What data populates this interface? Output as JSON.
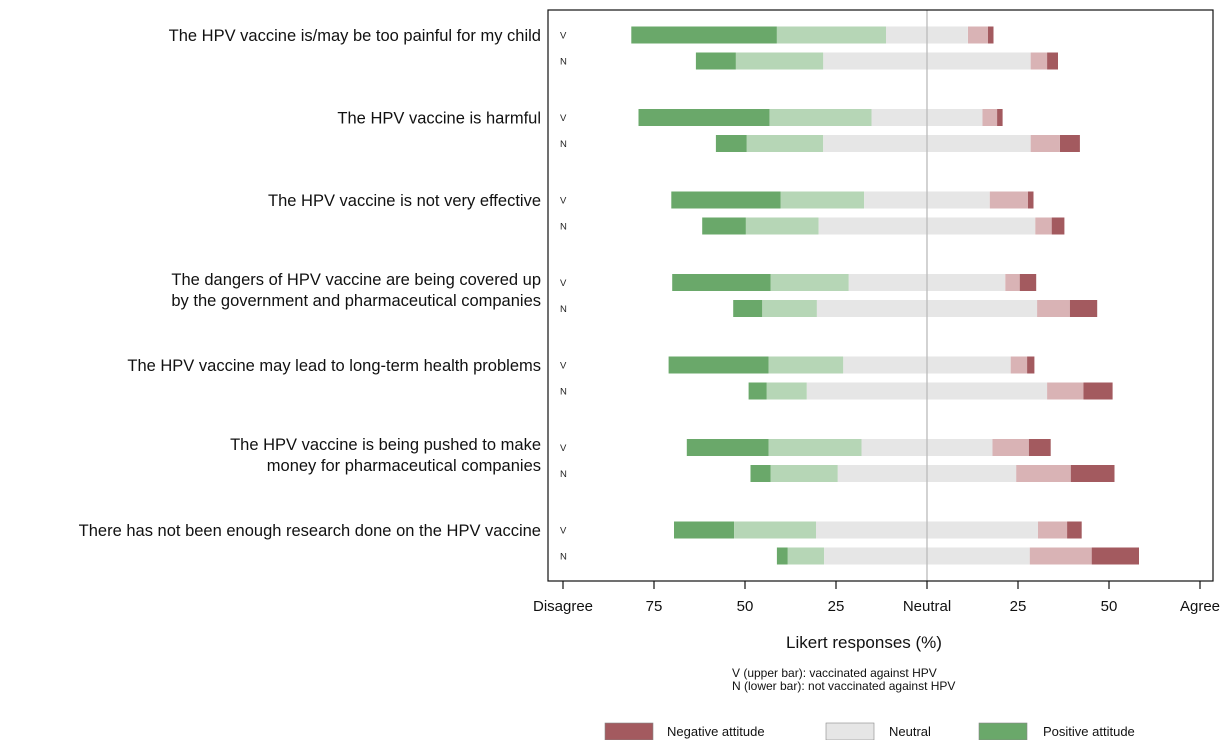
{
  "chart_data": {
    "type": "bar",
    "subtype": "diverging-stacked-horizontal",
    "x_axis": {
      "title": "Likert responses (%)",
      "range": [
        -100,
        100
      ],
      "ticks": [
        {
          "value": -100,
          "label": "Disagree"
        },
        {
          "value": -75,
          "label": "75"
        },
        {
          "value": -50,
          "label": "50"
        },
        {
          "value": -25,
          "label": "25"
        },
        {
          "value": 0,
          "label": "Neutral"
        },
        {
          "value": 25,
          "label": "25"
        },
        {
          "value": 50,
          "label": "50"
        },
        {
          "value": 75,
          "label": "Agree"
        }
      ]
    },
    "notes": [
      "V (upper bar): vaccinated against HPV",
      "N (lower bar): not vaccinated against HPV"
    ],
    "legend": {
      "placement": "bottom",
      "items": [
        {
          "label": "Negative attitude",
          "color": "#a35a5f"
        },
        {
          "label": "Neutral",
          "color": "#e6e6e6"
        },
        {
          "label": "Positive attitude",
          "color": "#6aa86a"
        }
      ]
    },
    "colors": {
      "strongly_disagree": "#6aa86a",
      "disagree": "#b6d6b6",
      "neutral": "#e6e6e6",
      "agree": "#d9b3b5",
      "strongly_agree": "#a35a5f",
      "neutral_line": "#bbbbbb"
    },
    "segment_order": [
      "strongly_disagree",
      "disagree",
      "neutral",
      "agree",
      "strongly_agree"
    ],
    "items": [
      {
        "label_lines": [
          "The HPV vaccine is/may be too painful for my child"
        ],
        "groups": [
          {
            "tag": "V",
            "segments": [
              40,
              30,
              22.5,
              5.5,
              1.5
            ]
          },
          {
            "tag": "N",
            "segments": [
              11,
              24,
              57,
              4.5,
              3
            ]
          }
        ]
      },
      {
        "label_lines": [
          "The HPV vaccine is harmful"
        ],
        "groups": [
          {
            "tag": "V",
            "segments": [
              36,
              28,
              30.5,
              4,
              1.5
            ]
          },
          {
            "tag": "N",
            "segments": [
              8.5,
              21,
              57,
              8,
              5.5
            ]
          }
        ]
      },
      {
        "label_lines": [
          "The HPV vaccine is not very effective"
        ],
        "groups": [
          {
            "tag": "V",
            "segments": [
              30,
              23,
              34.5,
              10.5,
              1.5
            ]
          },
          {
            "tag": "N",
            "segments": [
              12,
              20,
              59.5,
              4.5,
              3.5
            ]
          }
        ]
      },
      {
        "label_lines": [
          "The dangers of HPV vaccine are being covered up",
          "by the government and pharmaceutical companies"
        ],
        "groups": [
          {
            "tag": "V",
            "segments": [
              27,
              21.5,
              43,
              4,
              4.5
            ]
          },
          {
            "tag": "N",
            "segments": [
              8,
              15,
              60.5,
              9,
              7.5
            ]
          }
        ]
      },
      {
        "label_lines": [
          "The HPV vaccine may lead to long-term health problems"
        ],
        "groups": [
          {
            "tag": "V",
            "segments": [
              27.5,
              20.5,
              46,
              4.5,
              2
            ]
          },
          {
            "tag": "N",
            "segments": [
              5,
              11,
              66,
              10,
              8
            ]
          }
        ]
      },
      {
        "label_lines": [
          "The HPV vaccine is being pushed to make",
          "money for pharmaceutical companies"
        ],
        "groups": [
          {
            "tag": "V",
            "segments": [
              22.5,
              25.5,
              36,
              10,
              6
            ]
          },
          {
            "tag": "N",
            "segments": [
              5.5,
              18.5,
              49,
              15,
              12
            ]
          }
        ]
      },
      {
        "label_lines": [
          "There has not been enough research done on the HPV vaccine"
        ],
        "groups": [
          {
            "tag": "V",
            "segments": [
              16.5,
              22.5,
              61,
              8,
              4
            ]
          },
          {
            "tag": "N",
            "segments": [
              3,
              10,
              56.5,
              17,
              13
            ]
          }
        ]
      }
    ]
  }
}
